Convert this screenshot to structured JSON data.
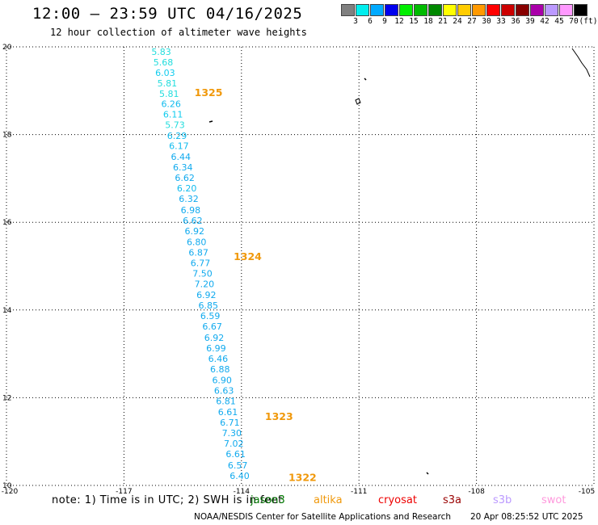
{
  "header": {
    "title": "12:00 – 23:59 UTC 04/16/2025",
    "subtitle": "12 hour collection of altimeter wave heights"
  },
  "colorbar": {
    "colors": [
      "#808080",
      "#00eeee",
      "#00aaff",
      "#0000ee",
      "#00ee00",
      "#00bb00",
      "#008800",
      "#ffff00",
      "#ffcc00",
      "#ff9900",
      "#ff0000",
      "#cc0000",
      "#880000",
      "#aa00aa",
      "#bb99ff",
      "#ff99ff",
      "#000000"
    ],
    "labels": [
      "3",
      "6",
      "9",
      "12",
      "15",
      "18",
      "21",
      "24",
      "27",
      "30",
      "33",
      "36",
      "39",
      "42",
      "45",
      "70",
      "(ft)"
    ]
  },
  "axes": {
    "x_ticks": [
      "-120",
      "-117",
      "-114",
      "-111",
      "-108",
      "-105"
    ],
    "y_ticks": [
      "20",
      "18",
      "16",
      "14",
      "12",
      "10"
    ]
  },
  "chart_data": {
    "type": "scatter",
    "title": "12:00 – 23:59 UTC 04/16/2025",
    "subtitle": "12 hour collection of altimeter wave heights",
    "xlabel": "",
    "ylabel": "",
    "xlim": [
      -120,
      -105
    ],
    "ylim": [
      10,
      20
    ],
    "grid": true,
    "units": "ft",
    "points": [
      {
        "lon": -116.3,
        "lat": 19.82,
        "swh": "5.83",
        "color": "#22dddd"
      },
      {
        "lon": -116.25,
        "lat": 19.58,
        "swh": "5.68",
        "color": "#22dddd"
      },
      {
        "lon": -116.2,
        "lat": 19.34,
        "swh": "6.03",
        "color": "#11ccee"
      },
      {
        "lon": -116.15,
        "lat": 19.1,
        "swh": "5.81",
        "color": "#22dddd"
      },
      {
        "lon": -116.1,
        "lat": 18.86,
        "swh": "5.81",
        "color": "#22dddd"
      },
      {
        "lon": -116.05,
        "lat": 18.63,
        "swh": "6.26",
        "color": "#11bbee"
      },
      {
        "lon": -116.0,
        "lat": 18.39,
        "swh": "6.11",
        "color": "#11ccee"
      },
      {
        "lon": -115.95,
        "lat": 18.15,
        "swh": "5.73",
        "color": "#22dddd"
      },
      {
        "lon": -115.9,
        "lat": 17.9,
        "swh": "6.29",
        "color": "#11bbee"
      },
      {
        "lon": -115.85,
        "lat": 17.67,
        "swh": "6.17",
        "color": "#11bbee"
      },
      {
        "lon": -115.8,
        "lat": 17.42,
        "swh": "6.44",
        "color": "#11aaee"
      },
      {
        "lon": -115.75,
        "lat": 17.18,
        "swh": "6.34",
        "color": "#11aaee"
      },
      {
        "lon": -115.7,
        "lat": 16.94,
        "swh": "6.62",
        "color": "#11aaee"
      },
      {
        "lon": -115.65,
        "lat": 16.7,
        "swh": "6.20",
        "color": "#11bbee"
      },
      {
        "lon": -115.6,
        "lat": 16.46,
        "swh": "6.32",
        "color": "#11aaee"
      },
      {
        "lon": -115.55,
        "lat": 16.21,
        "swh": "6.98",
        "color": "#11aaee"
      },
      {
        "lon": -115.5,
        "lat": 15.97,
        "swh": "6.62",
        "color": "#11aaee"
      },
      {
        "lon": -115.45,
        "lat": 15.73,
        "swh": "6.92",
        "color": "#11aaee"
      },
      {
        "lon": -115.4,
        "lat": 15.48,
        "swh": "6.80",
        "color": "#11aaee"
      },
      {
        "lon": -115.35,
        "lat": 15.24,
        "swh": "6.87",
        "color": "#11aaee"
      },
      {
        "lon": -115.3,
        "lat": 15.0,
        "swh": "6.77",
        "color": "#11aaee"
      },
      {
        "lon": -115.25,
        "lat": 14.76,
        "swh": "7.50",
        "color": "#11aaee"
      },
      {
        "lon": -115.2,
        "lat": 14.52,
        "swh": "7.20",
        "color": "#11aaee"
      },
      {
        "lon": -115.15,
        "lat": 14.27,
        "swh": "6.92",
        "color": "#11aaee"
      },
      {
        "lon": -115.1,
        "lat": 14.03,
        "swh": "6.85",
        "color": "#11aaee"
      },
      {
        "lon": -115.05,
        "lat": 13.79,
        "swh": "6.59",
        "color": "#11aaee"
      },
      {
        "lon": -115.0,
        "lat": 13.55,
        "swh": "6.67",
        "color": "#11aaee"
      },
      {
        "lon": -114.95,
        "lat": 13.3,
        "swh": "6.92",
        "color": "#11aaee"
      },
      {
        "lon": -114.9,
        "lat": 13.06,
        "swh": "6.99",
        "color": "#11aaee"
      },
      {
        "lon": -114.85,
        "lat": 12.82,
        "swh": "6.46",
        "color": "#11aaee"
      },
      {
        "lon": -114.8,
        "lat": 12.58,
        "swh": "6.88",
        "color": "#11aaee"
      },
      {
        "lon": -114.75,
        "lat": 12.33,
        "swh": "6.90",
        "color": "#11aaee"
      },
      {
        "lon": -114.7,
        "lat": 12.09,
        "swh": "6.63",
        "color": "#11aaee"
      },
      {
        "lon": -114.65,
        "lat": 11.85,
        "swh": "6.81",
        "color": "#11aaee"
      },
      {
        "lon": -114.6,
        "lat": 11.6,
        "swh": "6.61",
        "color": "#11aaee"
      },
      {
        "lon": -114.55,
        "lat": 11.36,
        "swh": "6.71",
        "color": "#11aaee"
      },
      {
        "lon": -114.5,
        "lat": 11.12,
        "swh": "7.30",
        "color": "#11aaee"
      },
      {
        "lon": -114.45,
        "lat": 10.88,
        "swh": "7.02",
        "color": "#11aaee"
      },
      {
        "lon": -114.4,
        "lat": 10.64,
        "swh": "6.61",
        "color": "#11aaee"
      },
      {
        "lon": -114.35,
        "lat": 10.39,
        "swh": "6.57",
        "color": "#11aaee"
      },
      {
        "lon": -114.3,
        "lat": 10.15,
        "swh": "6.40",
        "color": "#11aaee"
      }
    ],
    "pass_labels": [
      {
        "lon": -115.2,
        "lat": 18.88,
        "text": "1325"
      },
      {
        "lon": -114.2,
        "lat": 15.14,
        "text": "1324"
      },
      {
        "lon": -113.4,
        "lat": 11.49,
        "text": "1323"
      },
      {
        "lon": -112.8,
        "lat": 10.1,
        "text": "1322"
      }
    ]
  },
  "note": "note: 1) Time is in UTC; 2) SWH is in feet",
  "legend": [
    {
      "name": "jason3",
      "color": "#007700"
    },
    {
      "name": "altika",
      "color": "#f0980a"
    },
    {
      "name": "cryosat",
      "color": "#ee0000"
    },
    {
      "name": "s3a",
      "color": "#990000"
    },
    {
      "name": "s3b",
      "color": "#bb99ff"
    },
    {
      "name": "swot",
      "color": "#ff99dd"
    }
  ],
  "footer": {
    "credit": "NOAA/NESDIS Center for Satellite Applications and Research",
    "timestamp": "20 Apr 08:25:52 UTC 2025"
  }
}
